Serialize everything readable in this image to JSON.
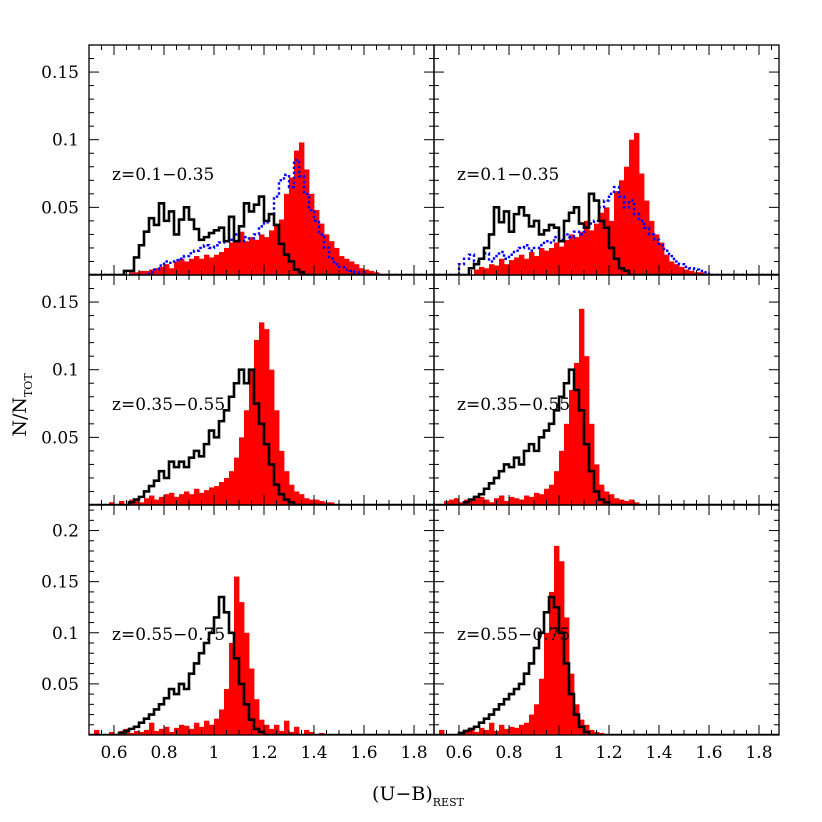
{
  "chart_data": {
    "type": "histogram-grid",
    "rows": 3,
    "cols": 2,
    "xlabel": "(U−B)",
    "xlabel_sub": "REST",
    "ylabel": "N/N",
    "ylabel_sub": "TOT",
    "xlim": [
      0.5,
      1.88
    ],
    "x_ticks": [
      0.6,
      0.8,
      1,
      1.2,
      1.4,
      1.6,
      1.8
    ],
    "x_tick_labels": [
      "0.6",
      "0.8",
      "1",
      "1.2",
      "1.4",
      "1.6",
      "1.8"
    ],
    "bin_width": 0.02,
    "x_start": 0.5,
    "colors": {
      "filled": "#ff0000",
      "black_line": "#000000",
      "dotted": "#0000ff"
    },
    "panels": [
      {
        "row": 0,
        "col": 0,
        "label": "z=0.1−0.35",
        "ylim": [
          0,
          0.17
        ],
        "y_ticks": [
          0.05,
          0.1,
          0.15
        ],
        "y_tick_labels": [
          "0.05",
          "0.1",
          "0.15"
        ],
        "filled": [
          0,
          0,
          0,
          0,
          0,
          0,
          0,
          0,
          0.002,
          0.002,
          0.003,
          0.003,
          0.004,
          0.005,
          0.006,
          0.008,
          0.005,
          0.01,
          0.012,
          0.01,
          0.012,
          0.014,
          0.012,
          0.015,
          0.013,
          0.015,
          0.017,
          0.02,
          0.024,
          0.026,
          0.032,
          0.025,
          0.028,
          0.026,
          0.03,
          0.028,
          0.033,
          0.038,
          0.041,
          0.06,
          0.072,
          0.092,
          0.098,
          0.078,
          0.06,
          0.048,
          0.038,
          0.03,
          0.025,
          0.02,
          0.014,
          0.012,
          0.01,
          0.008,
          0.005,
          0.004,
          0.003,
          0.002,
          0,
          0,
          0,
          0,
          0,
          0,
          0,
          0,
          0,
          0,
          0
        ],
        "black": [
          0,
          0,
          0,
          0,
          0,
          0,
          0,
          0.003,
          0.003,
          0.013,
          0.022,
          0.032,
          0.042,
          0.037,
          0.053,
          0.04,
          0.047,
          0.03,
          0.041,
          0.05,
          0.041,
          0.034,
          0.026,
          0.028,
          0.031,
          0.033,
          0.035,
          0.025,
          0.043,
          0.025,
          0.036,
          0.053,
          0.047,
          0.052,
          0.058,
          0.04,
          0.045,
          0.037,
          0.023,
          0.015,
          0.01,
          0.004,
          0.002,
          0,
          0,
          0,
          0,
          0,
          0,
          0,
          0,
          0,
          0,
          0,
          0,
          0,
          0,
          0,
          0,
          0,
          0,
          0,
          0,
          0,
          0,
          0,
          0,
          0,
          0
        ],
        "dotted": [
          0,
          0,
          0,
          0,
          0,
          0,
          0,
          0,
          0,
          0,
          0,
          0,
          0.002,
          0.004,
          0.007,
          0.01,
          0.009,
          0.011,
          0.012,
          0.014,
          0.016,
          0.018,
          0.02,
          0.022,
          0.02,
          0.022,
          0.024,
          0.028,
          0.026,
          0.03,
          0.025,
          0.028,
          0.027,
          0.03,
          0.036,
          0.039,
          0.045,
          0.058,
          0.07,
          0.074,
          0.065,
          0.085,
          0.073,
          0.06,
          0.048,
          0.04,
          0.03,
          0.02,
          0.012,
          0.008,
          0.006,
          0.004,
          0.003,
          0.002,
          0.002,
          0,
          0,
          0,
          0,
          0,
          0,
          0,
          0,
          0,
          0,
          0,
          0,
          0,
          0
        ]
      },
      {
        "row": 0,
        "col": 1,
        "label": "z=0.1−0.35",
        "ylim": [
          0,
          0.17
        ],
        "y_ticks": [
          0.05,
          0.1,
          0.15
        ],
        "y_tick_labels": [
          "",
          "",
          ""
        ],
        "filled": [
          0,
          0,
          0,
          0,
          0,
          0,
          0,
          0,
          0.004,
          0.006,
          0.005,
          0.008,
          0.007,
          0.012,
          0.008,
          0.011,
          0.013,
          0.015,
          0.012,
          0.017,
          0.014,
          0.02,
          0.018,
          0.02,
          0.024,
          0.021,
          0.026,
          0.03,
          0.028,
          0.032,
          0.04,
          0.033,
          0.038,
          0.046,
          0.05,
          0.04,
          0.062,
          0.07,
          0.08,
          0.1,
          0.105,
          0.075,
          0.055,
          0.04,
          0.03,
          0.024,
          0.015,
          0.01,
          0.008,
          0.006,
          0.004,
          0.003,
          0.002,
          0.002,
          0,
          0,
          0,
          0,
          0,
          0,
          0,
          0,
          0,
          0,
          0,
          0,
          0,
          0,
          0
        ],
        "black": [
          0,
          0,
          0,
          0,
          0,
          0,
          0,
          0.005,
          0.008,
          0.012,
          0.02,
          0.03,
          0.05,
          0.039,
          0.047,
          0.032,
          0.045,
          0.05,
          0.044,
          0.036,
          0.04,
          0.03,
          0.033,
          0.037,
          0.035,
          0.025,
          0.04,
          0.046,
          0.05,
          0.038,
          0.035,
          0.06,
          0.055,
          0.04,
          0.035,
          0.02,
          0.012,
          0.005,
          0.003,
          0,
          0,
          0,
          0,
          0,
          0,
          0,
          0,
          0,
          0,
          0,
          0,
          0,
          0,
          0,
          0,
          0,
          0,
          0,
          0,
          0,
          0,
          0,
          0,
          0,
          0,
          0,
          0,
          0,
          0
        ],
        "dotted": [
          0,
          0,
          0,
          0,
          0,
          0.008,
          0.012,
          0.015,
          0.01,
          0.012,
          0.016,
          0.01,
          0.014,
          0.017,
          0.012,
          0.015,
          0.018,
          0.02,
          0.022,
          0.018,
          0.02,
          0.022,
          0.025,
          0.024,
          0.028,
          0.026,
          0.03,
          0.028,
          0.032,
          0.03,
          0.035,
          0.038,
          0.04,
          0.05,
          0.055,
          0.06,
          0.065,
          0.058,
          0.05,
          0.055,
          0.045,
          0.04,
          0.035,
          0.03,
          0.026,
          0.022,
          0.018,
          0.014,
          0.01,
          0.008,
          0.006,
          0.005,
          0.004,
          0.003,
          0.002,
          0,
          0,
          0,
          0,
          0,
          0,
          0,
          0,
          0,
          0,
          0,
          0,
          0,
          0
        ]
      },
      {
        "row": 1,
        "col": 0,
        "label": "z=0.35−0.55",
        "ylim": [
          0,
          0.17
        ],
        "y_ticks": [
          0.05,
          0.1,
          0.15
        ],
        "y_tick_labels": [
          "0.05",
          "0.1",
          "0.15"
        ],
        "filled": [
          0,
          0,
          0,
          0,
          0.002,
          0,
          0.003,
          0,
          0.004,
          0.003,
          0.002,
          0.005,
          0.007,
          0.004,
          0.006,
          0.008,
          0.009,
          0.006,
          0.008,
          0.01,
          0.008,
          0.012,
          0.009,
          0.011,
          0.013,
          0.014,
          0.017,
          0.02,
          0.025,
          0.035,
          0.05,
          0.07,
          0.1,
          0.122,
          0.135,
          0.13,
          0.1,
          0.07,
          0.04,
          0.025,
          0.015,
          0.01,
          0.008,
          0.005,
          0.004,
          0.004,
          0.003,
          0.002,
          0.002,
          0,
          0,
          0,
          0,
          0,
          0,
          0,
          0,
          0,
          0,
          0,
          0,
          0,
          0,
          0,
          0,
          0,
          0,
          0,
          0
        ],
        "black": [
          0,
          0,
          0,
          0,
          0,
          0,
          0,
          0,
          0.002,
          0.004,
          0.006,
          0.01,
          0.014,
          0.018,
          0.025,
          0.02,
          0.032,
          0.028,
          0.032,
          0.028,
          0.035,
          0.04,
          0.036,
          0.045,
          0.055,
          0.05,
          0.062,
          0.07,
          0.08,
          0.09,
          0.1,
          0.09,
          0.1,
          0.075,
          0.06,
          0.045,
          0.03,
          0.015,
          0.008,
          0.004,
          0.002,
          0,
          0,
          0,
          0,
          0,
          0,
          0,
          0,
          0,
          0,
          0,
          0,
          0,
          0,
          0,
          0,
          0,
          0,
          0,
          0,
          0,
          0,
          0,
          0,
          0,
          0,
          0,
          0
        ]
      },
      {
        "row": 1,
        "col": 1,
        "label": "z=0.35−0.55",
        "ylim": [
          0,
          0.17
        ],
        "y_ticks": [
          0.05,
          0.1,
          0.15
        ],
        "y_tick_labels": [
          "",
          "",
          ""
        ],
        "filled": [
          0,
          0,
          0.003,
          0.004,
          0.005,
          0.002,
          0.004,
          0.003,
          0.005,
          0.006,
          0.004,
          0.002,
          0.005,
          0.007,
          0.003,
          0.006,
          0.005,
          0.004,
          0.007,
          0.006,
          0.009,
          0.008,
          0.012,
          0.015,
          0.025,
          0.04,
          0.06,
          0.085,
          0.105,
          0.145,
          0.11,
          0.06,
          0.03,
          0.015,
          0.01,
          0.008,
          0.005,
          0.004,
          0.003,
          0.004,
          0.002,
          0,
          0,
          0,
          0,
          0,
          0,
          0,
          0,
          0,
          0,
          0,
          0,
          0,
          0,
          0,
          0,
          0,
          0,
          0,
          0,
          0,
          0,
          0,
          0,
          0,
          0,
          0,
          0
        ],
        "black": [
          0,
          0,
          0,
          0,
          0,
          0,
          0.002,
          0.004,
          0.006,
          0.008,
          0.012,
          0.016,
          0.02,
          0.025,
          0.03,
          0.028,
          0.035,
          0.03,
          0.04,
          0.045,
          0.04,
          0.05,
          0.055,
          0.06,
          0.07,
          0.08,
          0.09,
          0.1,
          0.085,
          0.07,
          0.045,
          0.025,
          0.01,
          0.004,
          0.002,
          0,
          0,
          0,
          0,
          0,
          0,
          0,
          0,
          0,
          0,
          0,
          0,
          0,
          0,
          0,
          0,
          0,
          0,
          0,
          0,
          0,
          0,
          0,
          0,
          0,
          0,
          0,
          0,
          0,
          0,
          0,
          0,
          0,
          0
        ]
      },
      {
        "row": 2,
        "col": 0,
        "label": "z=0.55−0.75",
        "ylim": [
          0,
          0.225
        ],
        "y_ticks": [
          0.05,
          0.1,
          0.15,
          0.2
        ],
        "y_tick_labels": [
          "0.05",
          "0.1",
          "0.15",
          "0.2"
        ],
        "filled": [
          0,
          0.005,
          0,
          0,
          0.003,
          0,
          0.004,
          0.006,
          0.002,
          0.004,
          0.003,
          0.005,
          0.012,
          0.004,
          0.006,
          0.008,
          0.003,
          0.007,
          0.01,
          0.009,
          0.006,
          0.012,
          0.008,
          0.014,
          0.01,
          0.016,
          0.025,
          0.045,
          0.09,
          0.155,
          0.13,
          0.1,
          0.065,
          0.035,
          0.015,
          0.01,
          0.006,
          0.01,
          0.004,
          0.014,
          0.003,
          0.008,
          0,
          0.005,
          0.003,
          0,
          0.002,
          0,
          0,
          0,
          0,
          0,
          0,
          0,
          0,
          0,
          0,
          0,
          0,
          0,
          0,
          0,
          0,
          0,
          0,
          0,
          0,
          0,
          0
        ],
        "black": [
          0,
          0,
          0,
          0,
          0,
          0,
          0.002,
          0.004,
          0.006,
          0.008,
          0.012,
          0.016,
          0.02,
          0.025,
          0.03,
          0.036,
          0.045,
          0.04,
          0.05,
          0.045,
          0.06,
          0.07,
          0.08,
          0.09,
          0.1,
          0.115,
          0.135,
          0.12,
          0.1,
          0.075,
          0.05,
          0.03,
          0.015,
          0.006,
          0.003,
          0,
          0,
          0,
          0,
          0,
          0,
          0,
          0,
          0,
          0,
          0,
          0,
          0,
          0,
          0,
          0,
          0,
          0,
          0,
          0,
          0,
          0,
          0,
          0,
          0,
          0,
          0,
          0,
          0,
          0,
          0,
          0,
          0,
          0
        ]
      },
      {
        "row": 2,
        "col": 1,
        "label": "z=0.55−0.75",
        "ylim": [
          0,
          0.225
        ],
        "y_ticks": [
          0.05,
          0.1,
          0.15,
          0.2
        ],
        "y_tick_labels": [
          "",
          "",
          "",
          ""
        ],
        "filled": [
          0,
          0.005,
          0,
          0,
          0,
          0.003,
          0.004,
          0.006,
          0.003,
          0.007,
          0.005,
          0.012,
          0.004,
          0.01,
          0.006,
          0.008,
          0.007,
          0.01,
          0.012,
          0.02,
          0.03,
          0.055,
          0.1,
          0.14,
          0.185,
          0.17,
          0.115,
          0.06,
          0.03,
          0.015,
          0.01,
          0.005,
          0.003,
          0.002,
          0,
          0,
          0,
          0,
          0,
          0,
          0,
          0,
          0,
          0,
          0,
          0,
          0,
          0,
          0,
          0,
          0,
          0,
          0,
          0,
          0,
          0,
          0,
          0,
          0,
          0,
          0,
          0,
          0,
          0,
          0,
          0,
          0,
          0,
          0
        ],
        "black": [
          0,
          0,
          0,
          0,
          0,
          0.002,
          0.004,
          0.006,
          0.008,
          0.012,
          0.016,
          0.02,
          0.025,
          0.03,
          0.035,
          0.04,
          0.045,
          0.05,
          0.06,
          0.07,
          0.085,
          0.1,
          0.12,
          0.135,
          0.125,
          0.1,
          0.07,
          0.04,
          0.02,
          0.008,
          0.003,
          0,
          0,
          0,
          0,
          0,
          0,
          0,
          0,
          0,
          0,
          0,
          0,
          0,
          0,
          0,
          0,
          0,
          0,
          0,
          0,
          0,
          0,
          0,
          0,
          0,
          0,
          0,
          0,
          0,
          0,
          0,
          0,
          0,
          0,
          0,
          0,
          0,
          0
        ]
      }
    ]
  }
}
